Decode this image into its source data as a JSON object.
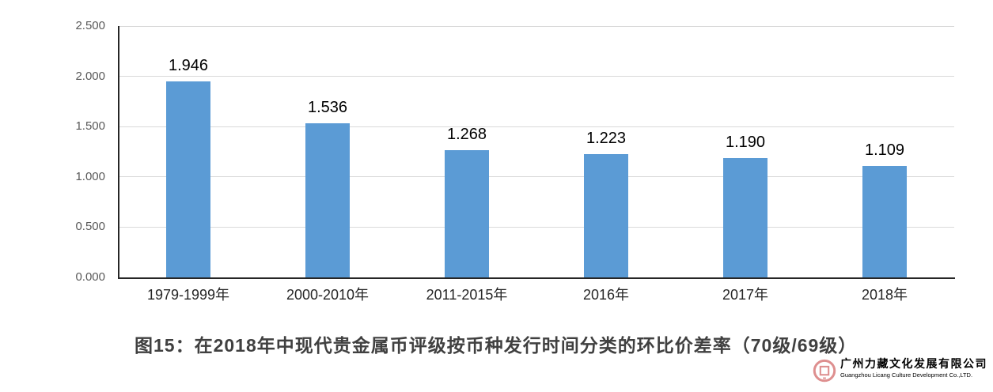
{
  "chart_data": {
    "type": "bar",
    "categories": [
      "1979-1999年",
      "2000-2010年",
      "2011-2015年",
      "2016年",
      "2017年",
      "2018年"
    ],
    "values": [
      1.946,
      1.536,
      1.268,
      1.223,
      1.19,
      1.109
    ],
    "value_labels": [
      "1.946",
      "1.536",
      "1.268",
      "1.223",
      "1.190",
      "1.109"
    ],
    "title": "图15：在2018年中现代贵金属币评级按币种发行时间分类的环比价差率（70级/69级）",
    "xlabel": "",
    "ylabel": "",
    "ylim": [
      0,
      2.5
    ],
    "ytick_values": [
      0,
      0.5,
      1,
      1.5,
      2,
      2.5
    ],
    "ytick_labels": [
      "0.000",
      "0.500",
      "1.000",
      "1.500",
      "2.000",
      "2.500"
    ],
    "grid": true,
    "legend": "none",
    "bar_color": "#5B9BD5",
    "gridline_color": "#D9D9D9",
    "axis_color": "#262626"
  },
  "branding": {
    "icon": "coin-icon",
    "company_cn": "广州力藏文化发展有限公司",
    "company_en": "Guangzhou Licang Culture Development Co.,LTD.",
    "color": "#DE8F8F"
  }
}
